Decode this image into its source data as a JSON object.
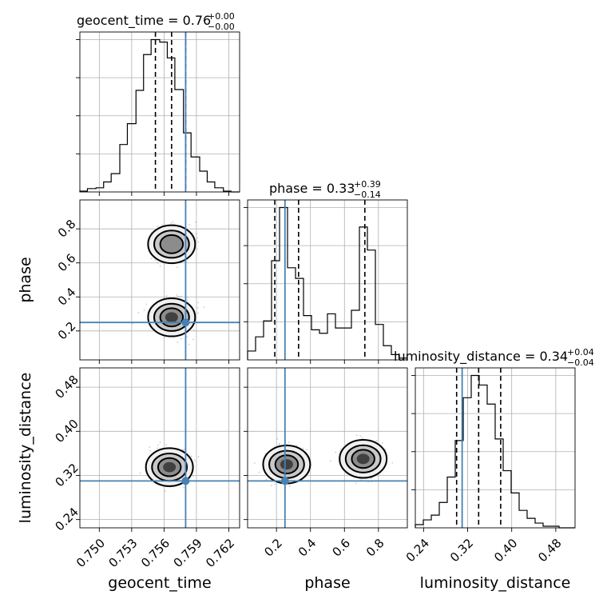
{
  "chart_data": {
    "type": "corner",
    "parameters": [
      "geocent_time",
      "phase",
      "luminosity_distance"
    ],
    "axis_labels": {
      "geocent_time": "geocent_time",
      "phase": "phase",
      "luminosity_distance": "luminosity_distance"
    },
    "truths": {
      "geocent_time": 0.758,
      "phase": 0.25,
      "luminosity_distance": 0.31
    },
    "ranges": {
      "geocent_time": [
        0.7482,
        0.763
      ],
      "phase": [
        0.03,
        0.97
      ],
      "luminosity_distance": [
        0.225,
        0.515
      ]
    },
    "ticks": {
      "geocent_time": [
        0.75,
        0.753,
        0.756,
        0.759,
        0.762
      ],
      "phase": [
        0.2,
        0.4,
        0.6,
        0.8
      ],
      "luminosity_distance": [
        0.24,
        0.32,
        0.4,
        0.48
      ]
    },
    "tick_labels": {
      "geocent_time": [
        "0.750",
        "0.753",
        "0.756",
        "0.759",
        "0.762"
      ],
      "phase": [
        "0.2",
        "0.4",
        "0.6",
        "0.8"
      ],
      "luminosity_distance": [
        "0.24",
        "0.32",
        "0.40",
        "0.48"
      ]
    },
    "titles": {
      "geocent_time": {
        "label": "geocent_time = 0.76",
        "plus": "+0.00",
        "minus": "−0.00"
      },
      "phase": {
        "label": "phase = 0.33",
        "plus": "+0.39",
        "minus": "−0.14"
      },
      "luminosity_distance": {
        "label": "luminosity_distance = 0.34",
        "plus": "+0.04",
        "minus": "−0.04"
      }
    },
    "quantiles": {
      "geocent_time": [
        0.7552,
        0.7567,
        0.758
      ],
      "phase": [
        0.19,
        0.33,
        0.72
      ],
      "luminosity_distance": [
        0.3,
        0.34,
        0.38
      ]
    },
    "histograms": {
      "geocent_time": {
        "edges": [
          0.7482,
          0.7489,
          0.7497,
          0.7504,
          0.7511,
          0.7519,
          0.7526,
          0.7534,
          0.7541,
          0.7548,
          0.7556,
          0.7563,
          0.757,
          0.7578,
          0.7585,
          0.7593,
          0.76,
          0.7607,
          0.7615,
          0.7622,
          0.763
        ],
        "counts": [
          1,
          4,
          5,
          12,
          22,
          57,
          82,
          122,
          165,
          183,
          180,
          161,
          123,
          71,
          42,
          25,
          12,
          5,
          1,
          0
        ]
      },
      "phase": {
        "edges": [
          0.03,
          0.077,
          0.124,
          0.171,
          0.218,
          0.265,
          0.312,
          0.359,
          0.406,
          0.453,
          0.5,
          0.547,
          0.594,
          0.641,
          0.688,
          0.735,
          0.782,
          0.829,
          0.876,
          0.923,
          0.97
        ],
        "counts": [
          5,
          13,
          22,
          56,
          86,
          52,
          46,
          25,
          17,
          15,
          26,
          18,
          18,
          28,
          75,
          62,
          20,
          8,
          3,
          1
        ]
      },
      "luminosity_distance": {
        "edges": [
          0.225,
          0.2395,
          0.254,
          0.2685,
          0.283,
          0.2975,
          0.312,
          0.3265,
          0.341,
          0.3555,
          0.37,
          0.3845,
          0.399,
          0.4135,
          0.428,
          0.4425,
          0.457,
          0.4715,
          0.486,
          0.5005,
          0.515
        ],
        "counts": [
          2,
          5,
          8,
          16,
          32,
          55,
          82,
          96,
          90,
          78,
          56,
          36,
          22,
          11,
          6,
          3,
          1,
          1,
          0,
          0
        ]
      }
    },
    "density_2d": {
      "phase_vs_geocent_time": {
        "modes": [
          {
            "x": 0.7567,
            "y": 0.28,
            "level": 4
          },
          {
            "x": 0.7567,
            "y": 0.71,
            "level": 3
          }
        ]
      },
      "luminosity_distance_vs_geocent_time": {
        "modes": [
          {
            "x": 0.7565,
            "y": 0.335,
            "level": 4
          }
        ]
      },
      "luminosity_distance_vs_phase": {
        "modes": [
          {
            "x": 0.26,
            "y": 0.34,
            "level": 4
          },
          {
            "x": 0.71,
            "y": 0.35,
            "level": 4
          }
        ]
      }
    },
    "grid": true
  }
}
